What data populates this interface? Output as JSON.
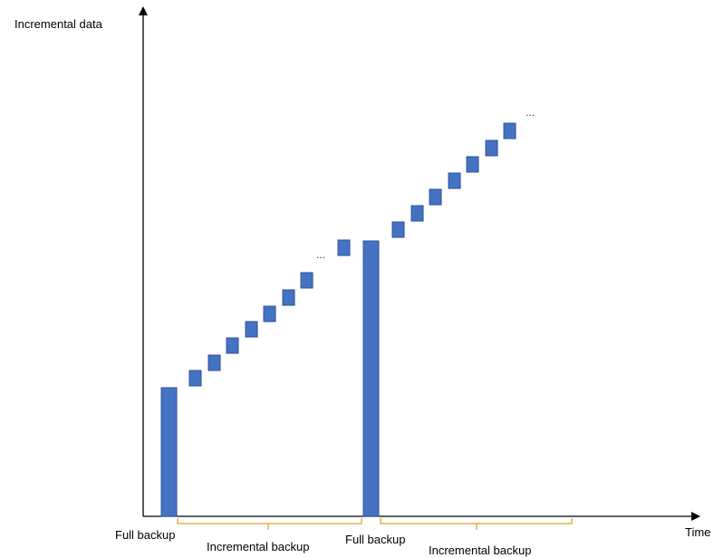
{
  "y_axis_label": "Incremental data",
  "x_axis_label": "Time",
  "ellipsis": "...",
  "labels": {
    "full_backup_1": "Full backup",
    "incremental_backup_1": "Incremental backup",
    "full_backup_2": "Full backup",
    "incremental_backup_2": "Incremental backup"
  },
  "colors": {
    "block_fill": "#4472C4",
    "block_stroke": "#2F528F",
    "brace": "#D9A520",
    "axis": "#000000"
  }
}
